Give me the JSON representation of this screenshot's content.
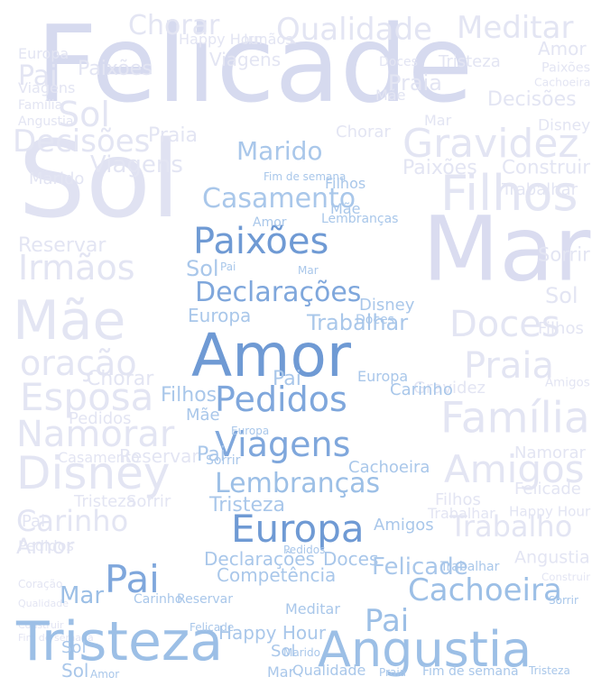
{
  "words": {
    "felicade": "Felicade",
    "sol": "Sol",
    "mar": "Mar",
    "amor": "Amor",
    "paixoes": "Paixões",
    "pedidos": "Pedidos",
    "viagens": "Viagens",
    "tristeza": "Tristeza",
    "angustia": "Angustia",
    "europa": "Europa",
    "pai": "Pai",
    "casamento": "Casamento",
    "declaracoes": "Declarações",
    "lembrancas": "Lembranças",
    "cachoeira": "Cachoeira",
    "marido": "Marido",
    "filhos": "Filhos",
    "mae": "Mãe",
    "amigos": "Amigos",
    "praia": "Praia",
    "familia": "Família",
    "trabalho": "Trabalho",
    "disney": "Disney",
    "namorar": "Namorar",
    "carinho": "Carinho",
    "esposa": "Esposa",
    "doces": "Doces",
    "irmaos": "Irmãos",
    "decisoes": "Decisões",
    "gravidez": "Gravidez",
    "oracao": "oração",
    "chorar": "Chorar",
    "qualidade": "Qualidade",
    "meditar": "Meditar",
    "competencia": "Competência",
    "happy_hour": "Happy Hour",
    "trabalhar": "Trabalhar",
    "sorrir": "Sorrir",
    "reservar": "Reservar",
    "construir": "Construir",
    "fim_de_semana": "Fim de semana",
    "coracao": "Coração"
  }
}
